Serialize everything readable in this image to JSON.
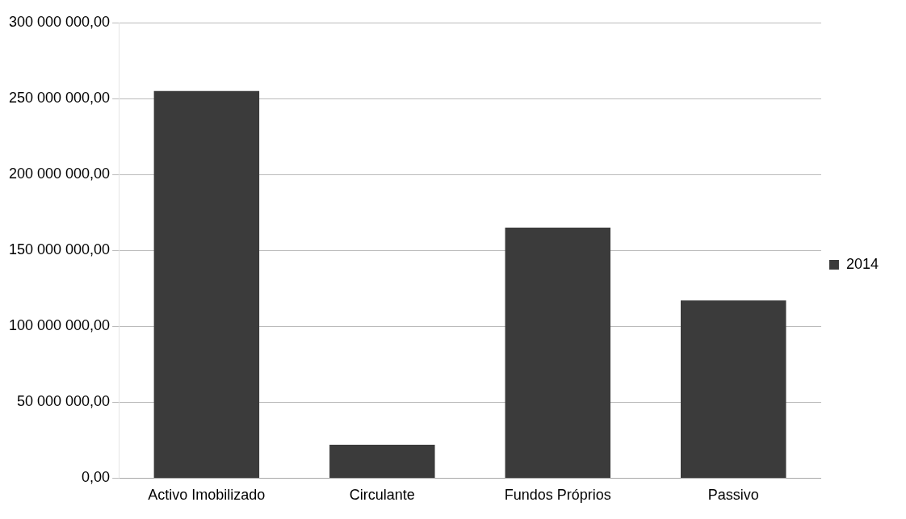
{
  "chart_data": {
    "type": "bar",
    "categories": [
      "Activo Imobilizado",
      "Circulante",
      "Fundos Próprios",
      "Passivo"
    ],
    "series": [
      {
        "name": "2014",
        "color": "#3b3b3b",
        "values": [
          255000000,
          22000000,
          165000000,
          117000000
        ]
      }
    ],
    "ylim": [
      0,
      300000000
    ],
    "yticks": [
      {
        "value": 0,
        "label": "0,00"
      },
      {
        "value": 50000000,
        "label": "50 000 000,00"
      },
      {
        "value": 100000000,
        "label": "100 000 000,00"
      },
      {
        "value": 150000000,
        "label": "150 000 000,00"
      },
      {
        "value": 200000000,
        "label": "200 000 000,00"
      },
      {
        "value": 250000000,
        "label": "250 000 000,00"
      },
      {
        "value": 300000000,
        "label": "300 000 000,00"
      }
    ],
    "grid": "y",
    "legend": "right"
  }
}
